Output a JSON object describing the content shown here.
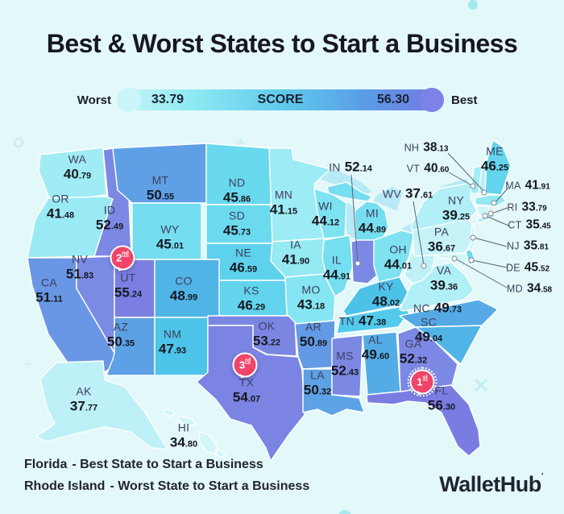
{
  "title": "Best & Worst States to Start a Business",
  "legend": {
    "worst": "Worst",
    "min": "33.79",
    "axis": "SCORE",
    "max": "56.30",
    "best": "Best"
  },
  "footer": {
    "best_state": "Florida",
    "best_text": "- Best State to Start a Business",
    "worst_state": "Rhode Island",
    "worst_text": "- Worst State to Start a Business"
  },
  "brand": "WalletHub",
  "colors": {
    "background": "#e3f8f9",
    "badge": "#f0456a",
    "lake": "#b7e9f7",
    "legend_gradient": [
      "#c9f5f9",
      "#8feaf3",
      "#5ec9eb",
      "#5a9de6",
      "#7478e2"
    ],
    "scale": [
      [
        33.79,
        "#d9f8fa"
      ],
      [
        39.3,
        "#b2eff6"
      ],
      [
        42.8,
        "#8ae7f2"
      ],
      [
        45.5,
        "#6fdcef"
      ],
      [
        47.7,
        "#4cc7ea"
      ],
      [
        49.5,
        "#52ade6"
      ],
      [
        50.9,
        "#639ae5"
      ],
      [
        51.8,
        "#7b8ae4"
      ],
      [
        56.3,
        "#7b7ce2"
      ]
    ]
  },
  "chart_data": {
    "type": "choropleth",
    "title": "Best & Worst States to Start a Business",
    "metric": "SCORE",
    "range": {
      "min": 33.79,
      "max": 56.3
    },
    "legend": {
      "min_label": "Worst",
      "max_label": "Best"
    },
    "rank_badges": [
      {
        "state": "FL",
        "rank": "1",
        "suffix": "st"
      },
      {
        "state": "UT",
        "rank": "2",
        "suffix": "nd"
      },
      {
        "state": "TX",
        "rank": "3",
        "suffix": "rd"
      }
    ],
    "states": [
      {
        "abbr": "WA",
        "score": 40.79
      },
      {
        "abbr": "OR",
        "score": 41.48
      },
      {
        "abbr": "CA",
        "score": 51.11
      },
      {
        "abbr": "NV",
        "score": 51.83
      },
      {
        "abbr": "ID",
        "score": 52.49
      },
      {
        "abbr": "UT",
        "score": 55.24
      },
      {
        "abbr": "AZ",
        "score": 50.35
      },
      {
        "abbr": "MT",
        "score": 50.55
      },
      {
        "abbr": "WY",
        "score": 45.01
      },
      {
        "abbr": "CO",
        "score": 48.99
      },
      {
        "abbr": "NM",
        "score": 47.93
      },
      {
        "abbr": "AK",
        "score": 37.77
      },
      {
        "abbr": "HI",
        "score": 34.8
      },
      {
        "abbr": "ND",
        "score": 45.86
      },
      {
        "abbr": "SD",
        "score": 45.73
      },
      {
        "abbr": "NE",
        "score": 46.59
      },
      {
        "abbr": "KS",
        "score": 46.29
      },
      {
        "abbr": "OK",
        "score": 53.22
      },
      {
        "abbr": "TX",
        "score": 54.07
      },
      {
        "abbr": "MN",
        "score": 41.15
      },
      {
        "abbr": "IA",
        "score": 41.9
      },
      {
        "abbr": "MO",
        "score": 43.18
      },
      {
        "abbr": "AR",
        "score": 50.89
      },
      {
        "abbr": "LA",
        "score": 50.32
      },
      {
        "abbr": "WI",
        "score": 44.12
      },
      {
        "abbr": "IL",
        "score": 44.91
      },
      {
        "abbr": "IN",
        "score": 52.14
      },
      {
        "abbr": "MI",
        "score": 44.89
      },
      {
        "abbr": "OH",
        "score": 44.01
      },
      {
        "abbr": "KY",
        "score": 48.02
      },
      {
        "abbr": "TN",
        "score": 47.38
      },
      {
        "abbr": "MS",
        "score": 52.43
      },
      {
        "abbr": "AL",
        "score": 49.6
      },
      {
        "abbr": "GA",
        "score": 52.32
      },
      {
        "abbr": "FL",
        "score": 56.3
      },
      {
        "abbr": "SC",
        "score": 49.04
      },
      {
        "abbr": "NC",
        "score": 49.73
      },
      {
        "abbr": "VA",
        "score": 39.36
      },
      {
        "abbr": "WV",
        "score": 37.61
      },
      {
        "abbr": "MD",
        "score": 34.58
      },
      {
        "abbr": "DE",
        "score": 45.52
      },
      {
        "abbr": "NJ",
        "score": 35.81
      },
      {
        "abbr": "PA",
        "score": 36.67
      },
      {
        "abbr": "NY",
        "score": 39.25
      },
      {
        "abbr": "CT",
        "score": 35.45
      },
      {
        "abbr": "RI",
        "score": 33.79
      },
      {
        "abbr": "MA",
        "score": 41.91
      },
      {
        "abbr": "VT",
        "score": 40.6
      },
      {
        "abbr": "NH",
        "score": 38.13
      },
      {
        "abbr": "ME",
        "score": 46.25
      }
    ]
  }
}
